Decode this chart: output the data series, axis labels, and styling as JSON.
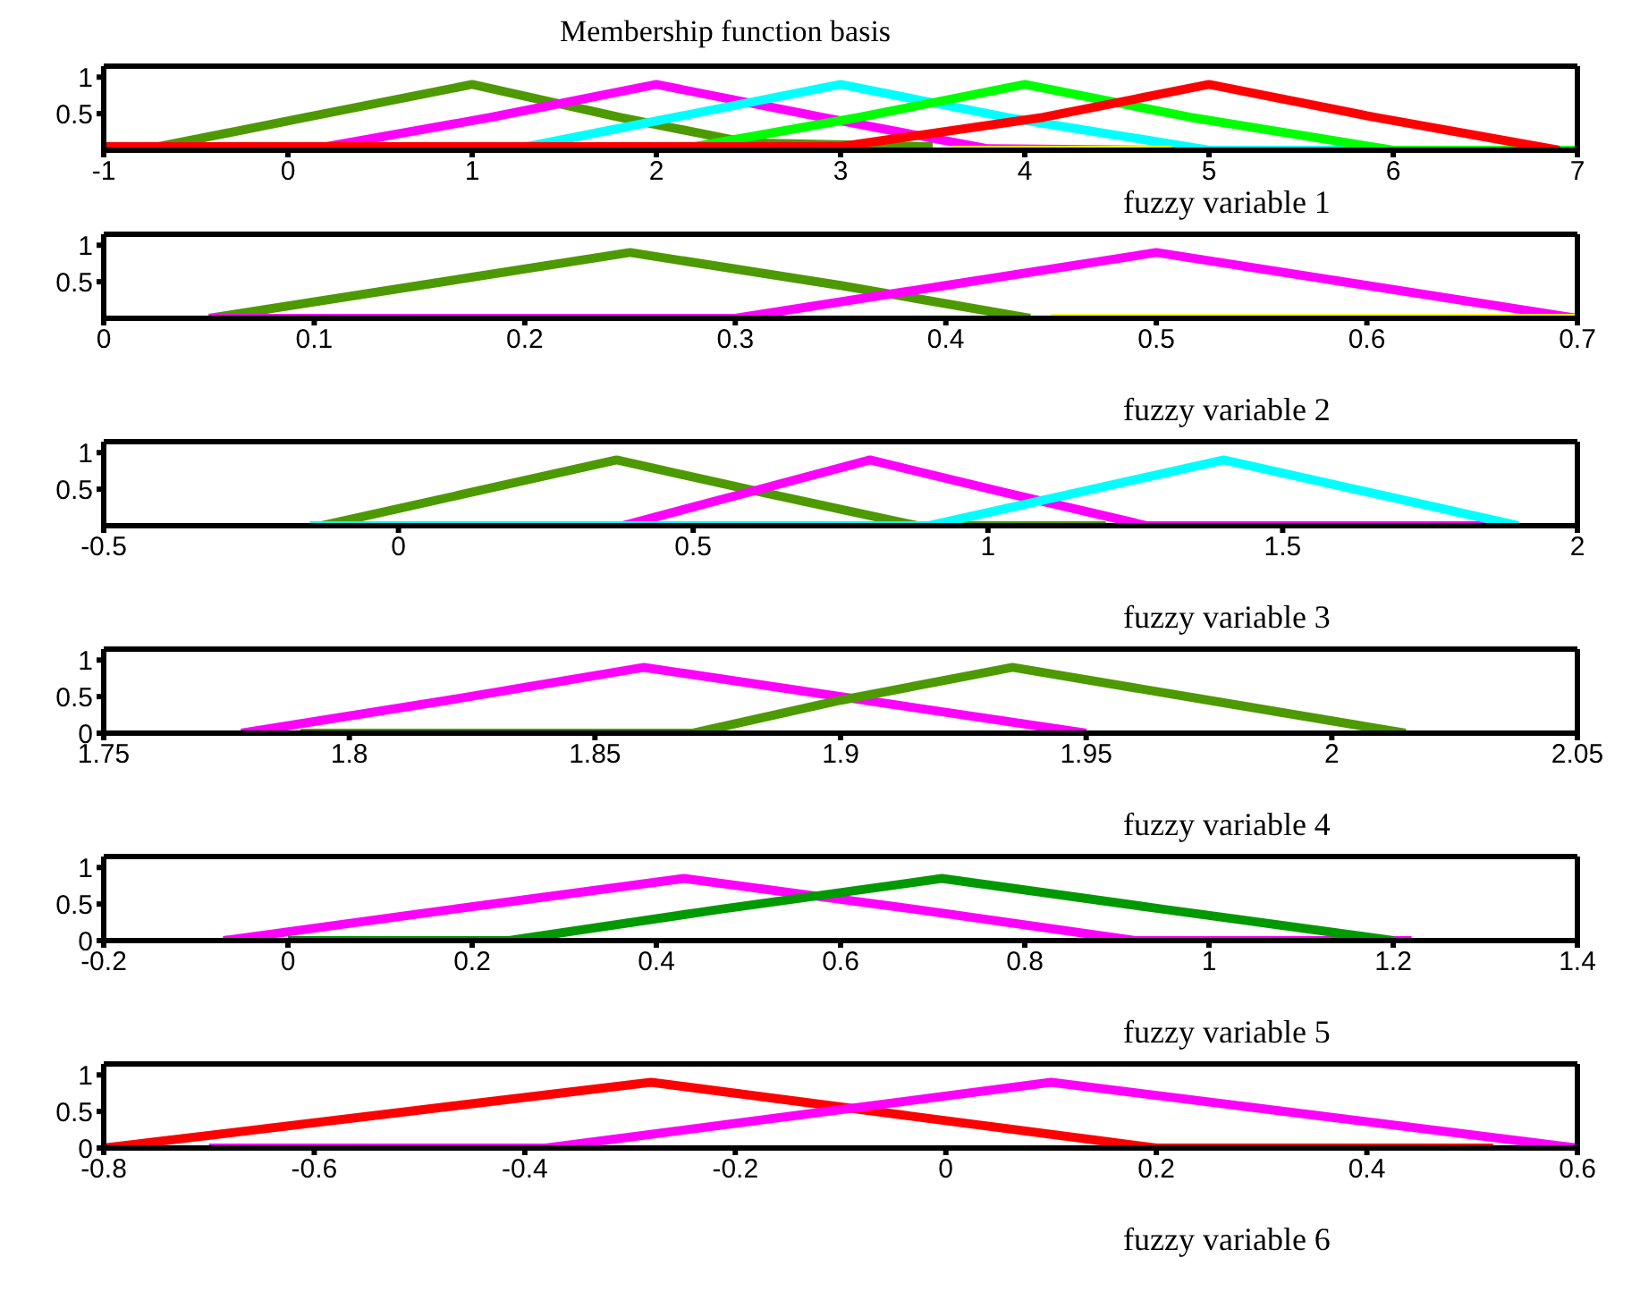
{
  "chart_data": [
    {
      "type": "line",
      "title": "Membership function basis",
      "xlabel": "fuzzy variable 1",
      "xlim": [
        -1,
        7
      ],
      "xticks": [
        -1,
        0,
        1,
        2,
        3,
        4,
        5,
        6,
        7
      ],
      "ylim": [
        0,
        1.15
      ],
      "yticks": [
        0.5,
        1
      ],
      "marker": "none",
      "series": [
        {
          "color": "#4d9900",
          "x": [
            -0.8,
            0.1,
            1,
            1.8,
            2.5,
            3.5
          ],
          "values": [
            0,
            0.45,
            0.9,
            0.45,
            0.1,
            0.05
          ]
        },
        {
          "color": "#ff00ff",
          "x": [
            0.1,
            1.1,
            2,
            2.9,
            3.8,
            4.8
          ],
          "values": [
            0,
            0.45,
            0.9,
            0.45,
            0.02,
            0
          ]
        },
        {
          "color": "#00ffff",
          "x": [
            1.2,
            2.1,
            3,
            3.9,
            5,
            5.8
          ],
          "values": [
            0,
            0.45,
            0.9,
            0.45,
            0,
            0
          ]
        },
        {
          "color": "#00ff00",
          "x": [
            -1,
            2.1,
            3.1,
            4,
            4.9,
            6,
            7
          ],
          "values": [
            0,
            0,
            0.45,
            0.9,
            0.45,
            0,
            0
          ]
        },
        {
          "color": "#ffff00",
          "x": [
            3.6,
            4.8
          ],
          "values": [
            0,
            0
          ]
        },
        {
          "color": "#ff0000",
          "x": [
            -1,
            3,
            4.1,
            5,
            5.9,
            6.9
          ],
          "values": [
            0.05,
            0.05,
            0.45,
            0.9,
            0.45,
            0
          ]
        }
      ]
    },
    {
      "type": "line",
      "xlabel": "fuzzy variable 2",
      "xlim": [
        0,
        0.7
      ],
      "xticks": [
        0,
        0.1,
        0.2,
        0.3,
        0.4,
        0.5,
        0.6,
        0.7
      ],
      "ylim": [
        0,
        1.15
      ],
      "yticks": [
        0.5,
        1
      ],
      "marker": "none",
      "series": [
        {
          "color": "#4d9900",
          "x": [
            0.05,
            0.15,
            0.25,
            0.35,
            0.44
          ],
          "values": [
            0,
            0.45,
            0.9,
            0.45,
            0
          ]
        },
        {
          "color": "#ff00ff",
          "x": [
            0.05,
            0.3,
            0.4,
            0.5,
            0.6,
            0.7
          ],
          "values": [
            0,
            0,
            0.45,
            0.9,
            0.45,
            0
          ]
        },
        {
          "color": "#ffff00",
          "x": [
            0.45,
            0.7
          ],
          "values": [
            0,
            0
          ]
        }
      ]
    },
    {
      "type": "line",
      "xlabel": "fuzzy variable 3",
      "xlim": [
        -0.5,
        2
      ],
      "xticks": [
        -0.5,
        0,
        0.5,
        1,
        1.5,
        2
      ],
      "ylim": [
        0,
        1.15
      ],
      "yticks": [
        0.5,
        1
      ],
      "marker": "none",
      "series": [
        {
          "color": "#4d9900",
          "x": [
            -0.13,
            0.12,
            0.37,
            0.62,
            0.88,
            1.2
          ],
          "values": [
            0,
            0.45,
            0.9,
            0.45,
            0,
            0
          ]
        },
        {
          "color": "#ff00ff",
          "x": [
            -0.15,
            0.38,
            0.59,
            0.8,
            1.03,
            1.27,
            1.9
          ],
          "values": [
            0,
            0,
            0.45,
            0.9,
            0.45,
            0,
            0
          ]
        },
        {
          "color": "#00ffff",
          "x": [
            -0.15,
            0.9,
            1.15,
            1.4,
            1.65,
            1.9
          ],
          "values": [
            0,
            0,
            0.45,
            0.9,
            0.45,
            0
          ]
        }
      ]
    },
    {
      "type": "line",
      "xlabel": "fuzzy variable 4",
      "xlim": [
        1.75,
        2.05
      ],
      "xticks": [
        1.75,
        1.8,
        1.85,
        1.9,
        1.95,
        2,
        2.05
      ],
      "ylim": [
        0,
        1.15
      ],
      "yticks": [
        0,
        0.5,
        1
      ],
      "marker": "none",
      "series": [
        {
          "color": "#ff00ff",
          "x": [
            1.778,
            1.82,
            1.86,
            1.905,
            1.95
          ],
          "values": [
            0,
            0.45,
            0.9,
            0.45,
            0
          ]
        },
        {
          "color": "#4d9900",
          "x": [
            1.79,
            1.87,
            1.9,
            1.935,
            1.975,
            2.015
          ],
          "values": [
            0,
            0,
            0.45,
            0.9,
            0.45,
            0
          ]
        }
      ]
    },
    {
      "type": "line",
      "xlabel": "fuzzy variable 5",
      "xlim": [
        -0.2,
        1.4
      ],
      "xticks": [
        -0.2,
        0,
        0.2,
        0.4,
        0.6,
        0.8,
        1,
        1.2,
        1.4
      ],
      "ylim": [
        0,
        1.15
      ],
      "yticks": [
        0,
        0.5,
        1
      ],
      "marker": "none",
      "series": [
        {
          "color": "#ff00ff",
          "x": [
            -0.07,
            0.18,
            0.43,
            0.68,
            0.92,
            1.22
          ],
          "values": [
            0,
            0.43,
            0.85,
            0.43,
            0,
            0
          ]
        },
        {
          "color": "#009900",
          "x": [
            0,
            0.24,
            0.47,
            0.71,
            0.95,
            1.2
          ],
          "values": [
            0,
            0,
            0.43,
            0.85,
            0.43,
            0
          ]
        }
      ]
    },
    {
      "type": "line",
      "xlabel": "fuzzy variable 6",
      "xlim": [
        -0.8,
        0.6
      ],
      "xticks": [
        -0.8,
        -0.6,
        -0.4,
        -0.2,
        0,
        0.2,
        0.4,
        0.6
      ],
      "ylim": [
        0,
        1.15
      ],
      "yticks": [
        0,
        0.5,
        1
      ],
      "marker": "none",
      "series": [
        {
          "color": "#ff0000",
          "x": [
            -0.8,
            -0.54,
            -0.28,
            -0.04,
            0.2,
            0.52
          ],
          "values": [
            0,
            0.45,
            0.9,
            0.45,
            0,
            0
          ]
        },
        {
          "color": "#ff00ff",
          "x": [
            -0.7,
            -0.38,
            -0.14,
            0.1,
            0.35,
            0.6
          ],
          "values": [
            0,
            0,
            0.45,
            0.9,
            0.45,
            0
          ]
        }
      ]
    }
  ]
}
